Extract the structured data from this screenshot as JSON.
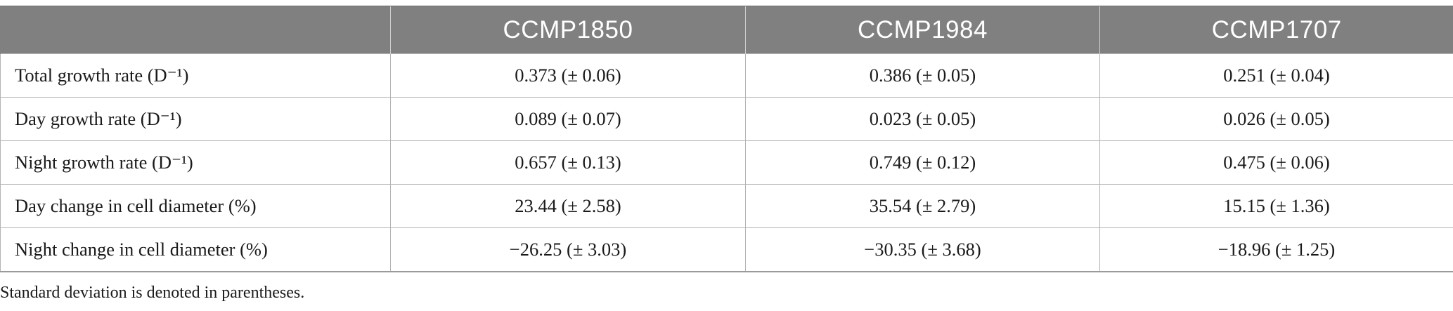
{
  "table": {
    "columns": [
      "",
      "CCMP1850",
      "CCMP1984",
      "CCMP1707"
    ],
    "rows": [
      {
        "label": "Total growth rate (D⁻¹)",
        "values": [
          "0.373 (± 0.06)",
          "0.386 (± 0.05)",
          "0.251 (± 0.04)"
        ]
      },
      {
        "label": "Day growth rate (D⁻¹)",
        "values": [
          "0.089 (± 0.07)",
          "0.023 (± 0.05)",
          "0.026 (± 0.05)"
        ]
      },
      {
        "label": "Night growth rate (D⁻¹)",
        "values": [
          "0.657 (± 0.13)",
          "0.749 (± 0.12)",
          "0.475 (± 0.06)"
        ]
      },
      {
        "label": "Day change in cell diameter (%)",
        "values": [
          "23.44 (± 2.58)",
          "35.54 (± 2.79)",
          "15.15 (± 1.36)"
        ]
      },
      {
        "label": "Night change in cell diameter (%)",
        "values": [
          "−26.25 (± 3.03)",
          "−30.35 (± 3.68)",
          "−18.96 (± 1.25)"
        ]
      }
    ]
  },
  "footnote": "Standard deviation is denoted in parentheses.",
  "colors": {
    "header_bg": "#808080",
    "header_text": "#ffffff",
    "grid_line": "#b3b3b3"
  }
}
